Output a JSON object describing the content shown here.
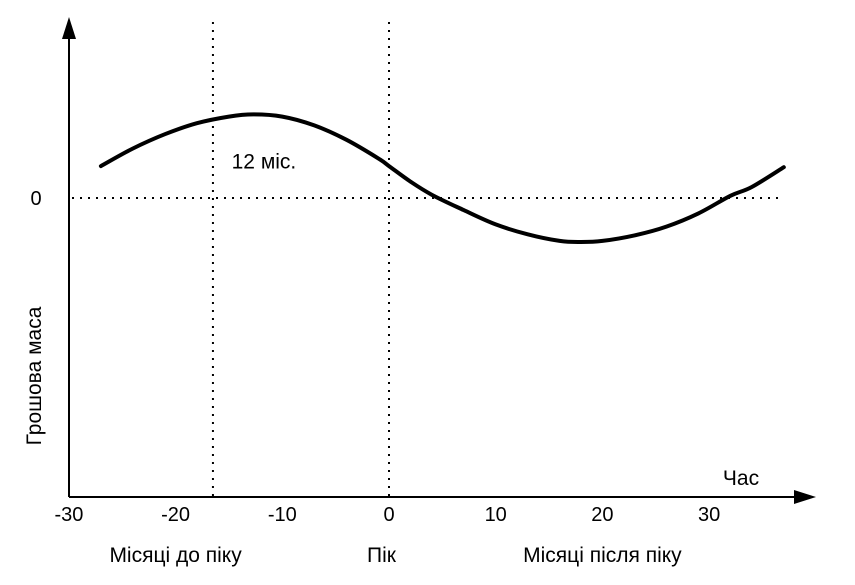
{
  "chart_data": {
    "type": "line",
    "title": "",
    "xlabel": "Час",
    "ylabel": "Грошова маса",
    "xlim": [
      -30,
      37
    ],
    "x_ticks": [
      -30,
      -20,
      -10,
      0,
      10,
      20,
      30
    ],
    "x_tick_labels": [
      "-30",
      "-20",
      "-10",
      "0",
      "10",
      "20",
      "30"
    ],
    "y_ticks": [
      0
    ],
    "y_tick_labels": [
      "0"
    ],
    "grid": false,
    "legend": "none",
    "colors": {
      "line": "#000000",
      "axis": "#000000",
      "reference": "#000000",
      "background": "#ffffff"
    },
    "series": [
      {
        "x": [
          -27,
          -24,
          -21,
          -18,
          -15,
          -12.7,
          -10,
          -7,
          -4,
          -1,
          0,
          2,
          4,
          7,
          10,
          13,
          16,
          18,
          20,
          23,
          26,
          29,
          32,
          34,
          37
        ],
        "y": [
          0.29,
          0.45,
          0.58,
          0.68,
          0.74,
          0.76,
          0.74,
          0.66,
          0.53,
          0.36,
          0.29,
          0.15,
          0.03,
          -0.11,
          -0.24,
          -0.33,
          -0.39,
          -0.4,
          -0.39,
          -0.34,
          -0.26,
          -0.14,
          0.02,
          0.1,
          0.28
        ]
      }
    ],
    "reference_lines": [
      {
        "axis": "y",
        "value": 0,
        "style": "dotted"
      },
      {
        "axis": "x",
        "value": -16.5,
        "style": "dotted"
      },
      {
        "axis": "x",
        "value": 0,
        "style": "dotted"
      }
    ],
    "annotations": [
      {
        "text": "12 міс.",
        "x": -12,
        "y": 0.33
      }
    ],
    "region_labels": [
      {
        "text": "Місяці до піку",
        "x": -20
      },
      {
        "text": "Пік",
        "x": -0.7
      },
      {
        "text": "Місяці після піку",
        "x": 20
      }
    ]
  }
}
